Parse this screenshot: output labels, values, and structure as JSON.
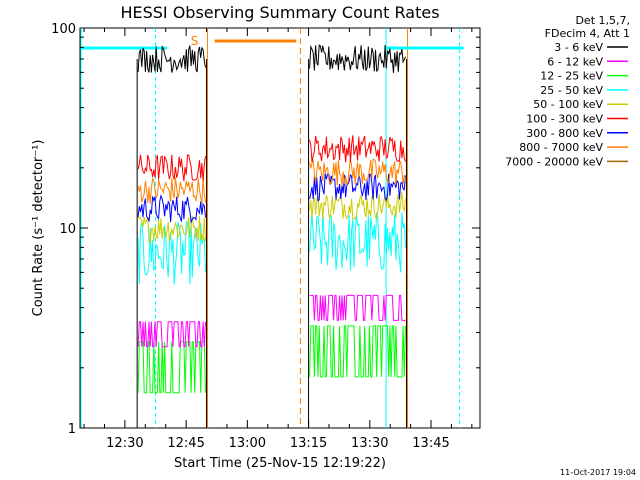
{
  "chart_data": {
    "type": "line",
    "title": "HESSI Observing Summary Count Rates",
    "xlabel": "Start Time (25-Nov-15 12:19:22)",
    "ylabel": "Count Rate (s⁻¹ detector⁻¹)",
    "y_scale": "log",
    "ylim": [
      1,
      100
    ],
    "xlim": [
      "12:19",
      "13:57"
    ],
    "x_ticks": [
      "12:30",
      "12:45",
      "13:00",
      "13:15",
      "13:30",
      "13:45"
    ],
    "y_ticks": [
      "1",
      "10",
      "100"
    ],
    "legend_position": "outside-right",
    "legend_header": [
      "Det 1,5,7,",
      "FDecim 4, Att 1"
    ],
    "annotation": "S",
    "footer": "11-Oct-2017 19:04",
    "colors": {
      "3-6": "#000000",
      "6-12": "#ff00ff",
      "12-25": "#00ff00",
      "25-50": "#00ffff",
      "50-100": "#cccc00",
      "100-300": "#ff0000",
      "300-800": "#0000ff",
      "800-7000": "#ff8000",
      "7000-20000": "#996600",
      "saa_marker": "#ff8000",
      "night_marker": "#00ffff"
    },
    "series": [
      {
        "name": "3 - 6 keV",
        "color": "#000000",
        "approx_values": {
          "segment_1": 70,
          "segment_2": 70
        }
      },
      {
        "name": "6 - 12 keV",
        "color": "#ff00ff",
        "approx_values": {
          "segment_1": 3.4,
          "segment_2": 4.6
        }
      },
      {
        "name": "12 - 25 keV",
        "color": "#00ff00",
        "approx_values": {
          "segment_1": 1.5,
          "segment_2": 1.8
        }
      },
      {
        "name": "25 - 50 keV",
        "color": "#00ffff",
        "approx_values": {
          "segment_1": 7.5,
          "segment_2": 8.5
        }
      },
      {
        "name": "50 - 100 keV",
        "color": "#cccc00",
        "approx_values": {
          "segment_1": 10,
          "segment_2": 13
        }
      },
      {
        "name": "100 - 300 keV",
        "color": "#ff0000",
        "approx_values": {
          "segment_1": 20,
          "segment_2": 25
        }
      },
      {
        "name": "300 - 800 keV",
        "color": "#0000ff",
        "approx_values": {
          "segment_1": 12.5,
          "segment_2": 16
        }
      },
      {
        "name": "800 - 7000 keV",
        "color": "#ff8000",
        "approx_values": {
          "segment_1": 15.5,
          "segment_2": 19
        }
      },
      {
        "name": "7000 - 20000 keV",
        "color": "#996600",
        "approx_values": {
          "segment_1": null,
          "segment_2": null
        }
      }
    ]
  }
}
